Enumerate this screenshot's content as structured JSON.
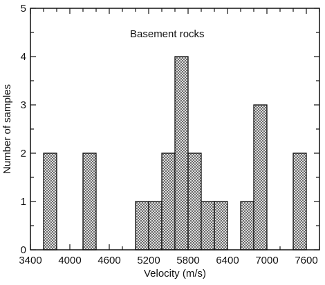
{
  "chart_data": {
    "type": "bar",
    "annotation": "Basement rocks",
    "xlabel": "Velocity (m/s)",
    "ylabel": "Number of samples",
    "xlim": [
      3400,
      7800
    ],
    "ylim": [
      0,
      5
    ],
    "x_ticks": [
      3400,
      4000,
      4600,
      5200,
      5800,
      6400,
      7000,
      7600
    ],
    "y_ticks": [
      0,
      1,
      2,
      3,
      4,
      5
    ],
    "bin_width": 200,
    "bins": [
      {
        "x0": 3600,
        "x1": 3800,
        "count": 2
      },
      {
        "x0": 4200,
        "x1": 4400,
        "count": 2
      },
      {
        "x0": 5000,
        "x1": 5200,
        "count": 1
      },
      {
        "x0": 5200,
        "x1": 5400,
        "count": 1
      },
      {
        "x0": 5400,
        "x1": 5600,
        "count": 2
      },
      {
        "x0": 5600,
        "x1": 5800,
        "count": 4
      },
      {
        "x0": 5800,
        "x1": 6000,
        "count": 2
      },
      {
        "x0": 6000,
        "x1": 6200,
        "count": 1
      },
      {
        "x0": 6200,
        "x1": 6400,
        "count": 1
      },
      {
        "x0": 6600,
        "x1": 6800,
        "count": 1
      },
      {
        "x0": 6800,
        "x1": 7000,
        "count": 3
      },
      {
        "x0": 7400,
        "x1": 7600,
        "count": 2
      }
    ],
    "grid": false,
    "bar_fill": "crosshatch",
    "colors": {
      "axis": "#111111",
      "bar_edge": "#111111",
      "hatch": "#555555",
      "background": "#ffffff"
    }
  }
}
